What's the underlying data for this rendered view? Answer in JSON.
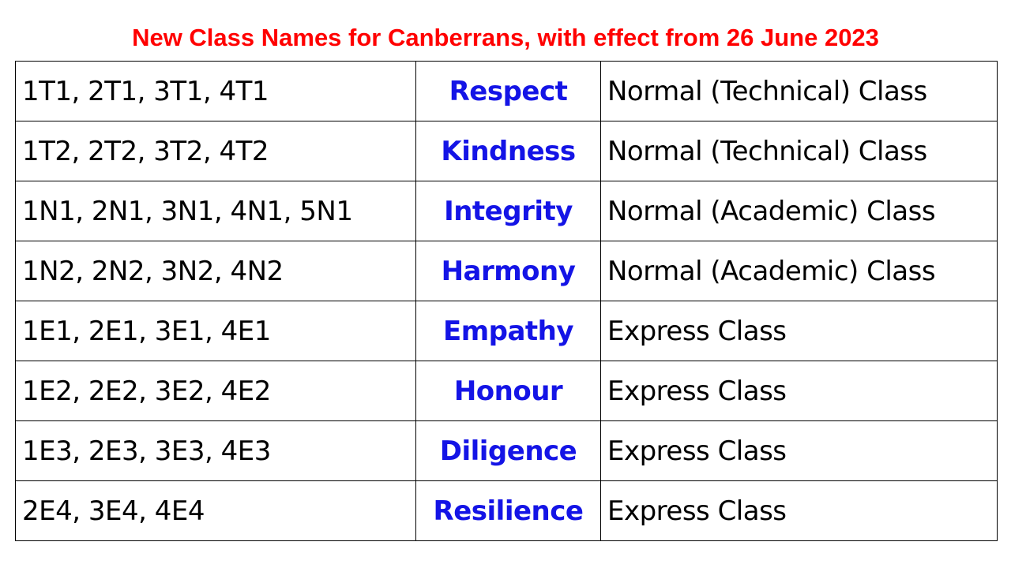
{
  "title": "New Class Names for Canberrans, with effect from 26 June 2023",
  "colors": {
    "title": "#ff0000",
    "class_name": "#1414e6",
    "text": "#000000",
    "border": "#000000"
  },
  "rows": [
    {
      "classes": "1T1, 2T1, 3T1, 4T1",
      "name": "Respect",
      "type": "Normal (Technical) Class"
    },
    {
      "classes": "1T2, 2T2, 3T2, 4T2",
      "name": "Kindness",
      "type": "Normal (Technical) Class"
    },
    {
      "classes": "1N1, 2N1, 3N1, 4N1, 5N1",
      "name": "Integrity",
      "type": "Normal (Academic) Class"
    },
    {
      "classes": "1N2, 2N2, 3N2, 4N2",
      "name": "Harmony",
      "type": "Normal (Academic) Class"
    },
    {
      "classes": "1E1, 2E1, 3E1, 4E1",
      "name": "Empathy",
      "type": "Express Class"
    },
    {
      "classes": "1E2, 2E2, 3E2, 4E2",
      "name": "Honour",
      "type": "Express Class"
    },
    {
      "classes": "1E3, 2E3, 3E3, 4E3",
      "name": "Diligence",
      "type": "Express Class"
    },
    {
      "classes": "2E4, 3E4, 4E4",
      "name": "Resilience",
      "type": "Express Class"
    }
  ]
}
